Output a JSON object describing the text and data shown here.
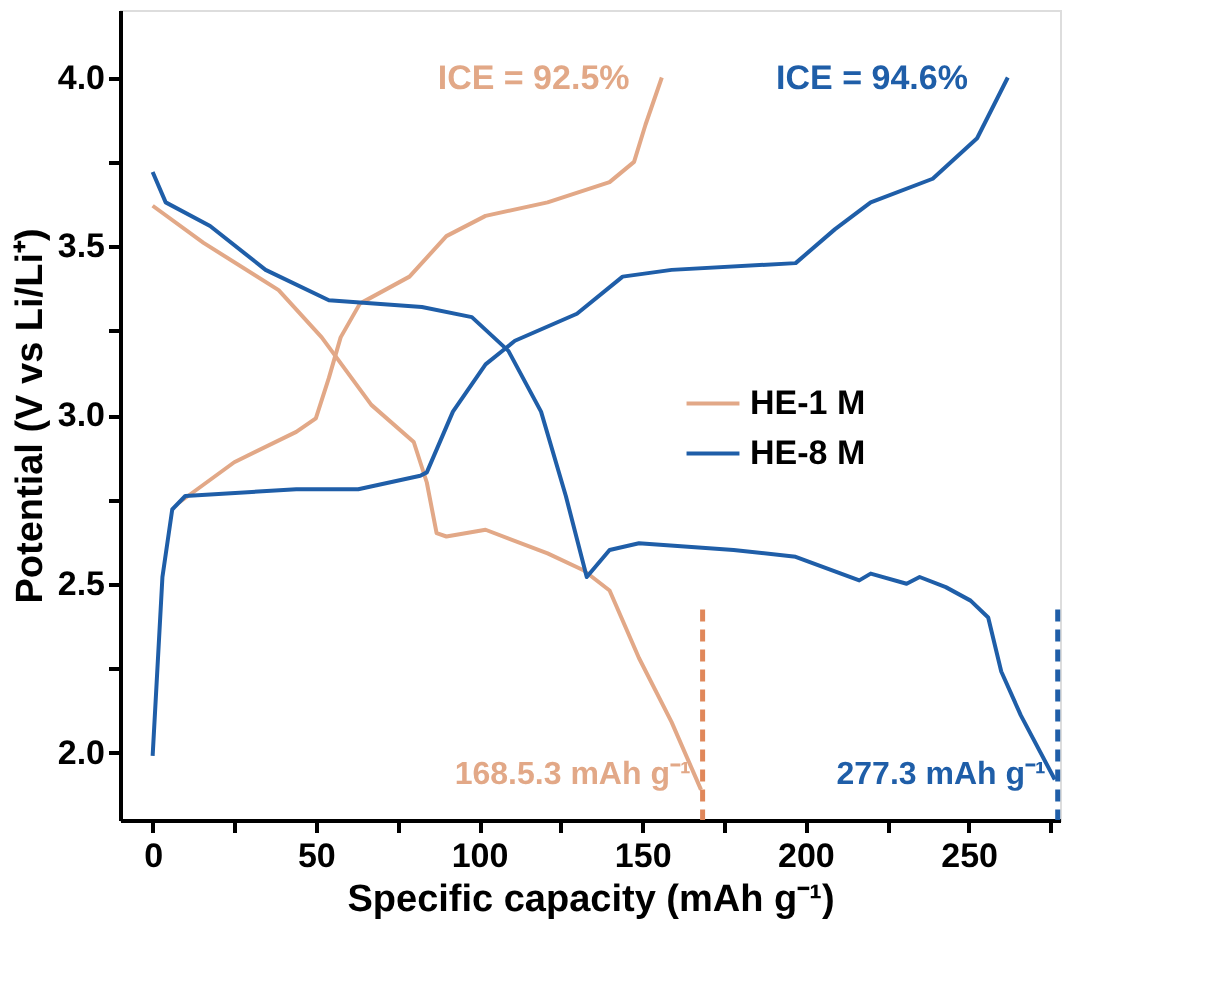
{
  "chart_data": {
    "type": "line",
    "xlabel": "Specific capacity (mAh g⁻¹)",
    "ylabel": "Potential  (V vs Li/Li⁺)",
    "xlim": [
      -10,
      278
    ],
    "ylim": [
      1.8,
      4.2
    ],
    "xticks": [
      0,
      {
        "value": 25,
        "label": null
      },
      50,
      {
        "value": 75,
        "label": null
      },
      100,
      {
        "value": 125,
        "label": null
      },
      150,
      {
        "value": 175,
        "label": null
      },
      200,
      {
        "value": 225,
        "label": null
      },
      250,
      {
        "value": 275,
        "label": null
      }
    ],
    "yticks": [
      {
        "value": 2,
        "label": "2.0"
      },
      {
        "value": 2.25,
        "label": null
      },
      {
        "value": 2.5,
        "label": "2.5"
      },
      {
        "value": 2.75,
        "label": null
      },
      {
        "value": 3,
        "label": "3.0"
      },
      {
        "value": 3.25,
        "label": null
      },
      {
        "value": 3.5,
        "label": "3.5"
      },
      {
        "value": 3.75,
        "label": null
      },
      {
        "value": 4,
        "label": "4.0"
      }
    ],
    "grid": false,
    "legend": "right",
    "marker": "none",
    "line_style": "solid",
    "series": [
      {
        "name": "HE-1 M",
        "color": "#e2a887",
        "x": [
          8,
          25,
          44,
          50,
          54,
          57.6,
          63.5,
          78.7,
          90,
          102,
          121,
          140,
          147.5,
          151,
          156
        ],
        "values": [
          2.74,
          2.86,
          2.95,
          2.99,
          3.11,
          3.23,
          3.33,
          3.41,
          3.53,
          3.59,
          3.63,
          3.69,
          3.75,
          3.86,
          4.0
        ]
      },
      {
        "color": "#e2a887",
        "x": [
          0,
          15.6,
          38.6,
          51.8,
          67,
          80,
          84,
          87,
          90,
          102,
          121,
          132,
          140,
          149,
          159,
          168
        ],
        "values": [
          3.62,
          3.51,
          3.37,
          3.23,
          3.03,
          2.92,
          2.8,
          2.65,
          2.64,
          2.66,
          2.59,
          2.54,
          2.48,
          2.28,
          2.09,
          1.89
        ]
      },
      {
        "name": "HE-8 M",
        "color": "#1f5ea8",
        "x": [
          0,
          3,
          6,
          10,
          44,
          63,
          82,
          84,
          92,
          102,
          111,
          130,
          144,
          159,
          197,
          209,
          220,
          239,
          252.6,
          262
        ],
        "values": [
          1.99,
          2.52,
          2.72,
          2.76,
          2.78,
          2.78,
          2.82,
          2.83,
          3.01,
          3.15,
          3.22,
          3.3,
          3.41,
          3.43,
          3.45,
          3.55,
          3.63,
          3.7,
          3.82,
          4.0
        ]
      },
      {
        "color": "#1f5ea8",
        "x": [
          0,
          4,
          17.6,
          34.6,
          54,
          82.5,
          97.8,
          109,
          119,
          126.6,
          133,
          140,
          149,
          178,
          197,
          216.5,
          220,
          231,
          235,
          243,
          250.6,
          256,
          260,
          266,
          276.4
        ],
        "values": [
          3.72,
          3.63,
          3.56,
          3.43,
          3.34,
          3.32,
          3.29,
          3.19,
          3.01,
          2.76,
          2.52,
          2.6,
          2.62,
          2.6,
          2.58,
          2.51,
          2.53,
          2.5,
          2.52,
          2.49,
          2.45,
          2.4,
          2.24,
          2.11,
          1.92
        ]
      }
    ],
    "ref_lines": [
      {
        "axis": "x",
        "value": 168.5,
        "color": "#e0875a",
        "line_style": "dashed"
      },
      {
        "axis": "x",
        "value": 277.3,
        "color": "#1f5ea8",
        "line_style": "dashed"
      }
    ],
    "annotations": [
      "ICE = 92.5%",
      "ICE = 94.6%",
      {
        "text": "168.5.3 mAh g⁻¹",
        "x": 168.5,
        "y": 1.9
      },
      {
        "text": "277.3 mAh g⁻¹",
        "x": 277.3,
        "y": 1.9
      }
    ]
  }
}
